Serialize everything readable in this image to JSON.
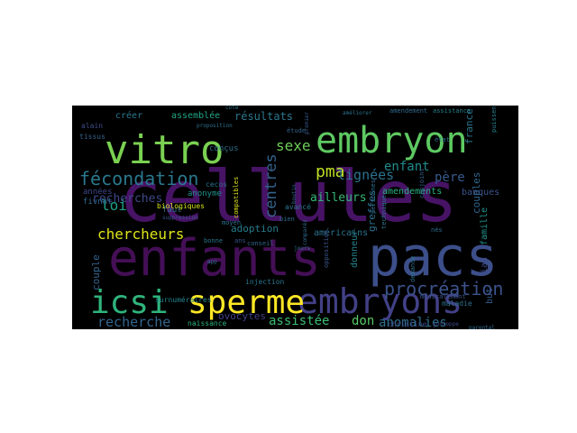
{
  "cloud": {
    "background": "#000000",
    "palette": "viridis",
    "words": [
      {
        "text": "cellules",
        "weight": 100,
        "color": "#471365",
        "rotate": 0
      },
      {
        "text": "enfants",
        "weight": 70,
        "color": "#440f56",
        "rotate": 0
      },
      {
        "text": "pacs",
        "weight": 70,
        "color": "#3c4f8a",
        "rotate": 0
      },
      {
        "text": "embryons",
        "weight": 46,
        "color": "#424086",
        "rotate": 0
      },
      {
        "text": "vitro",
        "weight": 46,
        "color": "#7ad151",
        "rotate": 0
      },
      {
        "text": "embryon",
        "weight": 44,
        "color": "#5ec962",
        "rotate": 0
      },
      {
        "text": "icsi",
        "weight": 40,
        "color": "#2fb47c",
        "rotate": 0
      },
      {
        "text": "sperme",
        "weight": 40,
        "color": "#fde725",
        "rotate": 0
      },
      {
        "text": "fécondation",
        "weight": 22,
        "color": "#2a788e",
        "rotate": 0
      },
      {
        "text": "procréation",
        "weight": 20,
        "color": "#3b528b",
        "rotate": 0
      },
      {
        "text": "centres",
        "weight": 18,
        "color": "#33638d",
        "rotate": 90
      },
      {
        "text": "pma",
        "weight": 18,
        "color": "#c0df25",
        "rotate": 0
      },
      {
        "text": "sexe",
        "weight": 17,
        "color": "#6ece58",
        "rotate": 0
      },
      {
        "text": "chercheurs",
        "weight": 17,
        "color": "#dde318",
        "rotate": 0
      },
      {
        "text": "lignées",
        "weight": 16,
        "color": "#2c728e",
        "rotate": 0
      },
      {
        "text": "loi",
        "weight": 16,
        "color": "#1fa187",
        "rotate": 0
      },
      {
        "text": "enfant",
        "weight": 15,
        "color": "#228c8d",
        "rotate": 0
      },
      {
        "text": "père",
        "weight": 15,
        "color": "#38598c",
        "rotate": 0
      },
      {
        "text": "recherche",
        "weight": 15,
        "color": "#32658e",
        "rotate": 0
      },
      {
        "text": "anomalies",
        "weight": 15,
        "color": "#2e6e8e",
        "rotate": 0
      },
      {
        "text": "assistée",
        "weight": 14,
        "color": "#3dbc74",
        "rotate": 0
      },
      {
        "text": "don",
        "weight": 14,
        "color": "#5ac864",
        "rotate": 0
      },
      {
        "text": "résultats",
        "weight": 12,
        "color": "#2a788e",
        "rotate": 0
      },
      {
        "text": "recherches",
        "weight": 12,
        "color": "#3f4788",
        "rotate": 0
      },
      {
        "text": "ailleurs",
        "weight": 12,
        "color": "#35b779",
        "rotate": 0
      },
      {
        "text": "greffes",
        "weight": 11,
        "color": "#2d708e",
        "rotate": 90
      },
      {
        "text": "france",
        "weight": 11,
        "color": "#2a768e",
        "rotate": 90
      },
      {
        "text": "couples",
        "weight": 11,
        "color": "#31678e",
        "rotate": 90
      },
      {
        "text": "amendements",
        "weight": 10,
        "color": "#2ab07f",
        "rotate": 0
      },
      {
        "text": "banques",
        "weight": 10,
        "color": "#3a548c",
        "rotate": 0
      },
      {
        "text": "donneur",
        "weight": 10,
        "color": "#26828e",
        "rotate": 90
      },
      {
        "text": "couple",
        "weight": 10,
        "color": "#33638d",
        "rotate": 90
      },
      {
        "text": "adoption",
        "weight": 10,
        "color": "#287d8e",
        "rotate": 0
      },
      {
        "text": "ovocytes",
        "weight": 10,
        "color": "#424086",
        "rotate": 0
      },
      {
        "text": "américains",
        "weight": 9,
        "color": "#2c738e",
        "rotate": 0
      },
      {
        "text": "iad",
        "weight": 9,
        "color": "#3e4a89",
        "rotate": 90
      },
      {
        "text": "famille",
        "weight": 9,
        "color": "#21918c",
        "rotate": 90
      },
      {
        "text": "but",
        "weight": 9,
        "color": "#375a8c",
        "rotate": 90
      },
      {
        "text": "assemblée",
        "weight": 9,
        "color": "#22a785",
        "rotate": 0
      },
      {
        "text": "créer",
        "weight": 9,
        "color": "#29798e",
        "rotate": 0
      },
      {
        "text": "années",
        "weight": 8,
        "color": "#3e4989",
        "rotate": 0
      },
      {
        "text": "fivnat",
        "weight": 8,
        "color": "#306a8e",
        "rotate": 0
      },
      {
        "text": "faut",
        "weight": 8,
        "color": "#2e6f8e",
        "rotate": 0
      },
      {
        "text": "anonyme",
        "weight": 8,
        "color": "#20928c",
        "rotate": 0
      },
      {
        "text": "conçus",
        "weight": 8,
        "color": "#2d708e",
        "rotate": 0
      },
      {
        "text": "biologiques",
        "weight": 7,
        "color": "#d5e21a",
        "rotate": 0
      },
      {
        "text": "injection",
        "weight": 7,
        "color": "#2a768e",
        "rotate": 0
      },
      {
        "text": "surnuméraires",
        "weight": 7,
        "color": "#25848e",
        "rotate": 0
      },
      {
        "text": "naissance",
        "weight": 7,
        "color": "#2db27d",
        "rotate": 0
      },
      {
        "text": "christine",
        "weight": 7,
        "color": "#3f4889",
        "rotate": 0
      },
      {
        "text": "maladie",
        "weight": 6,
        "color": "#2d718e",
        "rotate": 0
      },
      {
        "text": "avancé",
        "weight": 6,
        "color": "#2a778e",
        "rotate": 0
      },
      {
        "text": "tissus",
        "weight": 6,
        "color": "#33638d",
        "rotate": 0
      },
      {
        "text": "alain",
        "weight": 6,
        "color": "#3e4c8a",
        "rotate": 0
      },
      {
        "text": "cecos",
        "weight": 6,
        "color": "#2c728e",
        "rotate": 0
      },
      {
        "text": "nés",
        "weight": 6,
        "color": "#2f6b8e",
        "rotate": 0
      },
      {
        "text": "amendement",
        "weight": 5,
        "color": "#306a8e",
        "rotate": 0
      },
      {
        "text": "assistance",
        "weight": 5,
        "color": "#26818e",
        "rotate": 0
      },
      {
        "text": "état",
        "weight": 5,
        "color": "#2d708e",
        "rotate": 0
      },
      {
        "text": "étude",
        "weight": 5,
        "color": "#32648e",
        "rotate": 0
      },
      {
        "text": "puissent",
        "weight": 5,
        "color": "#277f8e",
        "rotate": 90
      },
      {
        "text": "médicalement",
        "weight": 5,
        "color": "#3b528b",
        "rotate": 0
      },
      {
        "text": "technique",
        "weight": 5,
        "color": "#2b748e",
        "rotate": 90
      },
      {
        "text": "conjoint",
        "weight": 5,
        "color": "#345f8d",
        "rotate": 90
      },
      {
        "text": "compatibles",
        "weight": 5,
        "color": "#dde318",
        "rotate": 90
      },
      {
        "text": "personnes",
        "weight": 5,
        "color": "#2e6d8e",
        "rotate": 90
      },
      {
        "text": "bonne",
        "weight": 5,
        "color": "#2a788e",
        "rotate": 0
      },
      {
        "text": "ans",
        "weight": 5,
        "color": "#3a548c",
        "rotate": 0
      },
      {
        "text": "conseil",
        "weight": 5,
        "color": "#31668e",
        "rotate": 0
      },
      {
        "text": "moyen",
        "weight": 5,
        "color": "#2c738e",
        "rotate": 0
      },
      {
        "text": "bien",
        "weight": 5,
        "color": "#2f6c8e",
        "rotate": 0
      },
      {
        "text": "opposition",
        "weight": 5,
        "color": "#39568c",
        "rotate": 90
      },
      {
        "text": "demande",
        "weight": 5,
        "color": "#2d718e",
        "rotate": 90
      },
      {
        "text": "améliorer",
        "weight": 4,
        "color": "#2c728e",
        "rotate": 0
      },
      {
        "text": "comparés",
        "weight": 4,
        "color": "#30698e",
        "rotate": 90
      },
      {
        "text": "boutin",
        "weight": 4,
        "color": "#31678e",
        "rotate": 90
      },
      {
        "text": "app",
        "weight": 4,
        "color": "#2d708e",
        "rotate": 0
      },
      {
        "text": "jours",
        "weight": 4,
        "color": "#2b758e",
        "rotate": 0
      },
      {
        "text": "suppression",
        "weight": 4,
        "color": "#39568c",
        "rotate": 0
      },
      {
        "text": "gontoppe",
        "weight": 4,
        "color": "#3e4a89",
        "rotate": 0
      },
      {
        "text": "cote",
        "weight": 4,
        "color": "#2a768e",
        "rotate": 0
      },
      {
        "text": "proposition",
        "weight": 4,
        "color": "#2d708e",
        "rotate": 0
      },
      {
        "text": "premier",
        "weight": 4,
        "color": "#38598c",
        "rotate": 90
      },
      {
        "text": "parental",
        "weight": 4,
        "color": "#2f6c8e",
        "rotate": 0
      }
    ]
  }
}
